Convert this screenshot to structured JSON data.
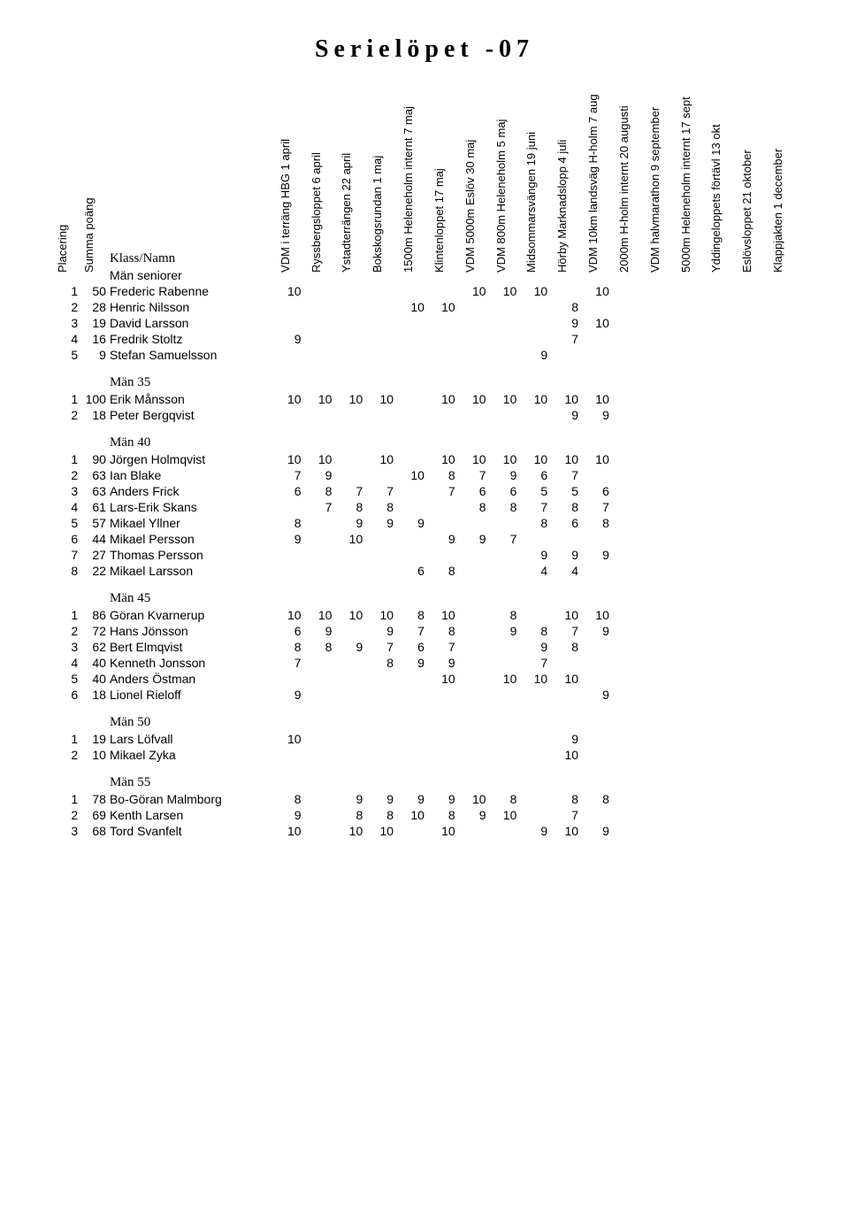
{
  "title": "Serielöpet -07",
  "headers": {
    "left": [
      "Placering",
      "Summa poäng",
      "Klass/Namn"
    ],
    "events": [
      "VDM i terräng HBG 1 april",
      "Ryssbergsloppet 6 april",
      "Ystadterrängen 22 april",
      "Bokskogsrundan 1 maj",
      "1500m Heleneholm internt 7 maj",
      "Klintenloppet 17 maj",
      "VDM 5000m Eslöv 30 maj",
      "VDM 800m Heleneholm 5 maj",
      "Midsommarsvängen 19 juni",
      "Hörby Marknadslopp 4 juli",
      "VDM 10km landsväg H-holm 7 aug",
      "2000m H-holm internt 20 augusti",
      "VDM halvmarathon 9 september",
      "5000m Heleneholm internt 17 sept",
      "Yddingeloppets förtävl 13 okt",
      "Eslövsloppet 21 oktober",
      "Klappjakten 1 december"
    ]
  },
  "groups": [
    {
      "name": "Män seniorer",
      "rows": [
        {
          "p": "1",
          "s": "50",
          "n": "Frederic Rabenne",
          "v": [
            "10",
            "",
            "",
            "",
            "",
            "",
            "10",
            "10",
            "10",
            "",
            "10",
            "",
            "",
            "",
            "",
            "",
            ""
          ]
        },
        {
          "p": "2",
          "s": "28",
          "n": "Henric Nilsson",
          "v": [
            "",
            "",
            "",
            "",
            "10",
            "10",
            "",
            "",
            "",
            "8",
            "",
            "",
            "",
            "",
            "",
            "",
            ""
          ]
        },
        {
          "p": "3",
          "s": "19",
          "n": "David Larsson",
          "v": [
            "",
            "",
            "",
            "",
            "",
            "",
            "",
            "",
            "",
            "9",
            "10",
            "",
            "",
            "",
            "",
            "",
            ""
          ]
        },
        {
          "p": "4",
          "s": "16",
          "n": "Fredrik Stoltz",
          "v": [
            "9",
            "",
            "",
            "",
            "",
            "",
            "",
            "",
            "",
            "7",
            "",
            "",
            "",
            "",
            "",
            "",
            ""
          ]
        },
        {
          "p": "5",
          "s": "9",
          "n": "Stefan Samuelsson",
          "v": [
            "",
            "",
            "",
            "",
            "",
            "",
            "",
            "",
            "9",
            "",
            "",
            "",
            "",
            "",
            "",
            "",
            ""
          ]
        }
      ]
    },
    {
      "name": "Män 35",
      "rows": [
        {
          "p": "1",
          "s": "100",
          "n": "Erik Månsson",
          "v": [
            "10",
            "10",
            "10",
            "10",
            "",
            "10",
            "10",
            "10",
            "10",
            "10",
            "10",
            "",
            "",
            "",
            "",
            "",
            ""
          ]
        },
        {
          "p": "2",
          "s": "18",
          "n": "Peter Bergqvist",
          "v": [
            "",
            "",
            "",
            "",
            "",
            "",
            "",
            "",
            "",
            "9",
            "9",
            "",
            "",
            "",
            "",
            "",
            ""
          ]
        }
      ]
    },
    {
      "name": "Män 40",
      "rows": [
        {
          "p": "1",
          "s": "90",
          "n": "Jörgen Holmqvist",
          "v": [
            "10",
            "10",
            "",
            "10",
            "",
            "10",
            "10",
            "10",
            "10",
            "10",
            "10",
            "",
            "",
            "",
            "",
            "",
            ""
          ]
        },
        {
          "p": "2",
          "s": "63",
          "n": "Ian Blake",
          "v": [
            "7",
            "9",
            "",
            "",
            "10",
            "8",
            "7",
            "9",
            "6",
            "7",
            "",
            "",
            "",
            "",
            "",
            "",
            ""
          ]
        },
        {
          "p": "3",
          "s": "63",
          "n": "Anders Frick",
          "v": [
            "6",
            "8",
            "7",
            "7",
            "",
            "7",
            "6",
            "6",
            "5",
            "5",
            "6",
            "",
            "",
            "",
            "",
            "",
            ""
          ]
        },
        {
          "p": "4",
          "s": "61",
          "n": "Lars-Erik Skans",
          "v": [
            "",
            "7",
            "8",
            "8",
            "",
            "",
            "8",
            "8",
            "7",
            "8",
            "7",
            "",
            "",
            "",
            "",
            "",
            ""
          ]
        },
        {
          "p": "5",
          "s": "57",
          "n": "Mikael Yllner",
          "v": [
            "8",
            "",
            "9",
            "9",
            "9",
            "",
            "",
            "",
            "8",
            "6",
            "8",
            "",
            "",
            "",
            "",
            "",
            ""
          ]
        },
        {
          "p": "6",
          "s": "44",
          "n": "Mikael Persson",
          "v": [
            "9",
            "",
            "10",
            "",
            "",
            "9",
            "9",
            "7",
            "",
            "",
            "",
            "",
            "",
            "",
            "",
            "",
            ""
          ]
        },
        {
          "p": "7",
          "s": "27",
          "n": "Thomas Persson",
          "v": [
            "",
            "",
            "",
            "",
            "",
            "",
            "",
            "",
            "9",
            "9",
            "9",
            "",
            "",
            "",
            "",
            "",
            ""
          ]
        },
        {
          "p": "8",
          "s": "22",
          "n": "Mikael Larsson",
          "v": [
            "",
            "",
            "",
            "",
            "6",
            "8",
            "",
            "",
            "4",
            "4",
            "",
            "",
            "",
            "",
            "",
            "",
            ""
          ]
        }
      ]
    },
    {
      "name": "Män 45",
      "rows": [
        {
          "p": "1",
          "s": "86",
          "n": "Göran Kvarnerup",
          "v": [
            "10",
            "10",
            "10",
            "10",
            "8",
            "10",
            "",
            "8",
            "",
            "10",
            "10",
            "",
            "",
            "",
            "",
            "",
            ""
          ]
        },
        {
          "p": "2",
          "s": "72",
          "n": "Hans Jönsson",
          "v": [
            "6",
            "9",
            "",
            "9",
            "7",
            "8",
            "",
            "9",
            "8",
            "7",
            "9",
            "",
            "",
            "",
            "",
            "",
            ""
          ]
        },
        {
          "p": "3",
          "s": "62",
          "n": "Bert Elmqvist",
          "v": [
            "8",
            "8",
            "9",
            "7",
            "6",
            "7",
            "",
            "",
            "9",
            "8",
            "",
            "",
            "",
            "",
            "",
            "",
            ""
          ]
        },
        {
          "p": "4",
          "s": "40",
          "n": "Kenneth Jonsson",
          "v": [
            "7",
            "",
            "",
            "8",
            "9",
            "9",
            "",
            "",
            "7",
            "",
            "",
            "",
            "",
            "",
            "",
            "",
            ""
          ]
        },
        {
          "p": "5",
          "s": "40",
          "n": "Anders Östman",
          "v": [
            "",
            "",
            "",
            "",
            "",
            "10",
            "",
            "10",
            "10",
            "10",
            "",
            "",
            "",
            "",
            "",
            "",
            ""
          ]
        },
        {
          "p": "6",
          "s": "18",
          "n": "Lionel Rieloff",
          "v": [
            "9",
            "",
            "",
            "",
            "",
            "",
            "",
            "",
            "",
            "",
            "9",
            "",
            "",
            "",
            "",
            "",
            ""
          ]
        }
      ]
    },
    {
      "name": "Män 50",
      "rows": [
        {
          "p": "1",
          "s": "19",
          "n": "Lars Löfvall",
          "v": [
            "10",
            "",
            "",
            "",
            "",
            "",
            "",
            "",
            "",
            "9",
            "",
            "",
            "",
            "",
            "",
            "",
            ""
          ]
        },
        {
          "p": "2",
          "s": "10",
          "n": "Mikael Zyka",
          "v": [
            "",
            "",
            "",
            "",
            "",
            "",
            "",
            "",
            "",
            "10",
            "",
            "",
            "",
            "",
            "",
            "",
            ""
          ]
        }
      ]
    },
    {
      "name": "Män 55",
      "rows": [
        {
          "p": "1",
          "s": "78",
          "n": "Bo-Göran Malmborg",
          "v": [
            "8",
            "",
            "9",
            "9",
            "9",
            "9",
            "10",
            "8",
            "",
            "8",
            "8",
            "",
            "",
            "",
            "",
            "",
            ""
          ]
        },
        {
          "p": "2",
          "s": "69",
          "n": "Kenth Larsen",
          "v": [
            "9",
            "",
            "8",
            "8",
            "10",
            "8",
            "9",
            "10",
            "",
            "7",
            "",
            "",
            "",
            "",
            "",
            "",
            ""
          ]
        },
        {
          "p": "3",
          "s": "68",
          "n": "Tord Svanfelt",
          "v": [
            "10",
            "",
            "10",
            "10",
            "",
            "10",
            "",
            "",
            "9",
            "10",
            "9",
            "",
            "",
            "",
            "",
            "",
            ""
          ]
        }
      ]
    }
  ]
}
